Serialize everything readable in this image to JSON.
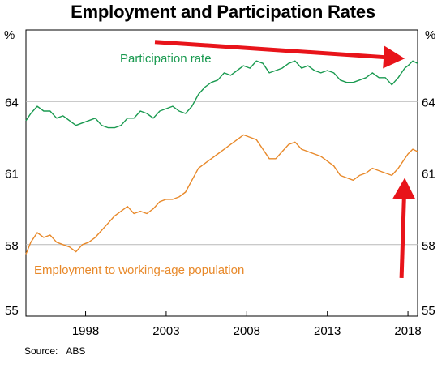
{
  "page": {
    "source_label": "Source:",
    "source_value": "ABS"
  },
  "chart_data": {
    "type": "line",
    "title": "Employment and Participation Rates",
    "y_unit_left": "%",
    "y_unit_right": "%",
    "ylim": [
      55,
      67
    ],
    "yticks": [
      55,
      58,
      61,
      64
    ],
    "xlim": [
      1994.3,
      2018.6
    ],
    "xticks": [
      1998,
      2003,
      2008,
      2013,
      2018
    ],
    "grid": "horizontal",
    "colors": {
      "participation": "#1a9a50",
      "employment": "#e8892a",
      "arrow": "#e8141a",
      "grid": "#b8b8b8"
    },
    "series": [
      {
        "name": "Participation rate",
        "color": "#1a9a50",
        "points": [
          [
            1994.3,
            63.2
          ],
          [
            1994.6,
            63.5
          ],
          [
            1995.0,
            63.8
          ],
          [
            1995.4,
            63.6
          ],
          [
            1995.8,
            63.6
          ],
          [
            1996.2,
            63.3
          ],
          [
            1996.6,
            63.4
          ],
          [
            1997.0,
            63.2
          ],
          [
            1997.4,
            63.0
          ],
          [
            1997.8,
            63.1
          ],
          [
            1998.2,
            63.2
          ],
          [
            1998.6,
            63.3
          ],
          [
            1999.0,
            63.0
          ],
          [
            1999.4,
            62.9
          ],
          [
            1999.8,
            62.9
          ],
          [
            2000.2,
            63.0
          ],
          [
            2000.6,
            63.3
          ],
          [
            2001.0,
            63.3
          ],
          [
            2001.4,
            63.6
          ],
          [
            2001.8,
            63.5
          ],
          [
            2002.2,
            63.3
          ],
          [
            2002.6,
            63.6
          ],
          [
            2003.0,
            63.7
          ],
          [
            2003.4,
            63.8
          ],
          [
            2003.8,
            63.6
          ],
          [
            2004.2,
            63.5
          ],
          [
            2004.6,
            63.8
          ],
          [
            2005.0,
            64.3
          ],
          [
            2005.4,
            64.6
          ],
          [
            2005.8,
            64.8
          ],
          [
            2006.2,
            64.9
          ],
          [
            2006.6,
            65.2
          ],
          [
            2007.0,
            65.1
          ],
          [
            2007.4,
            65.3
          ],
          [
            2007.8,
            65.5
          ],
          [
            2008.2,
            65.4
          ],
          [
            2008.6,
            65.7
          ],
          [
            2009.0,
            65.6
          ],
          [
            2009.4,
            65.2
          ],
          [
            2009.8,
            65.3
          ],
          [
            2010.2,
            65.4
          ],
          [
            2010.6,
            65.6
          ],
          [
            2011.0,
            65.7
          ],
          [
            2011.4,
            65.4
          ],
          [
            2011.8,
            65.5
          ],
          [
            2012.2,
            65.3
          ],
          [
            2012.6,
            65.2
          ],
          [
            2013.0,
            65.3
          ],
          [
            2013.4,
            65.2
          ],
          [
            2013.8,
            64.9
          ],
          [
            2014.2,
            64.8
          ],
          [
            2014.6,
            64.8
          ],
          [
            2015.0,
            64.9
          ],
          [
            2015.4,
            65.0
          ],
          [
            2015.8,
            65.2
          ],
          [
            2016.2,
            65.0
          ],
          [
            2016.6,
            65.0
          ],
          [
            2017.0,
            64.7
          ],
          [
            2017.4,
            65.0
          ],
          [
            2017.8,
            65.4
          ],
          [
            2018.0,
            65.5
          ],
          [
            2018.3,
            65.7
          ],
          [
            2018.6,
            65.6
          ]
        ]
      },
      {
        "name": "Employment to working-age population",
        "color": "#e8892a",
        "points": [
          [
            1994.3,
            57.6
          ],
          [
            1994.6,
            58.1
          ],
          [
            1995.0,
            58.5
          ],
          [
            1995.4,
            58.3
          ],
          [
            1995.8,
            58.4
          ],
          [
            1996.2,
            58.1
          ],
          [
            1996.6,
            58.0
          ],
          [
            1997.0,
            57.9
          ],
          [
            1997.4,
            57.7
          ],
          [
            1997.8,
            58.0
          ],
          [
            1998.2,
            58.1
          ],
          [
            1998.6,
            58.3
          ],
          [
            1999.0,
            58.6
          ],
          [
            1999.4,
            58.9
          ],
          [
            1999.8,
            59.2
          ],
          [
            2000.2,
            59.4
          ],
          [
            2000.6,
            59.6
          ],
          [
            2001.0,
            59.3
          ],
          [
            2001.4,
            59.4
          ],
          [
            2001.8,
            59.3
          ],
          [
            2002.2,
            59.5
          ],
          [
            2002.6,
            59.8
          ],
          [
            2003.0,
            59.9
          ],
          [
            2003.4,
            59.9
          ],
          [
            2003.8,
            60.0
          ],
          [
            2004.2,
            60.2
          ],
          [
            2004.6,
            60.7
          ],
          [
            2005.0,
            61.2
          ],
          [
            2005.4,
            61.4
          ],
          [
            2005.8,
            61.6
          ],
          [
            2006.2,
            61.8
          ],
          [
            2006.6,
            62.0
          ],
          [
            2007.0,
            62.2
          ],
          [
            2007.4,
            62.4
          ],
          [
            2007.8,
            62.6
          ],
          [
            2008.2,
            62.5
          ],
          [
            2008.6,
            62.4
          ],
          [
            2009.0,
            62.0
          ],
          [
            2009.4,
            61.6
          ],
          [
            2009.8,
            61.6
          ],
          [
            2010.2,
            61.9
          ],
          [
            2010.6,
            62.2
          ],
          [
            2011.0,
            62.3
          ],
          [
            2011.4,
            62.0
          ],
          [
            2011.8,
            61.9
          ],
          [
            2012.2,
            61.8
          ],
          [
            2012.6,
            61.7
          ],
          [
            2013.0,
            61.5
          ],
          [
            2013.4,
            61.3
          ],
          [
            2013.8,
            60.9
          ],
          [
            2014.2,
            60.8
          ],
          [
            2014.6,
            60.7
          ],
          [
            2015.0,
            60.9
          ],
          [
            2015.4,
            61.0
          ],
          [
            2015.8,
            61.2
          ],
          [
            2016.2,
            61.1
          ],
          [
            2016.6,
            61.0
          ],
          [
            2017.0,
            60.9
          ],
          [
            2017.4,
            61.2
          ],
          [
            2017.8,
            61.6
          ],
          [
            2018.0,
            61.8
          ],
          [
            2018.3,
            62.0
          ],
          [
            2018.6,
            61.9
          ]
        ]
      }
    ],
    "annotations": [
      {
        "type": "arrow",
        "color": "#e8141a",
        "from": [
          2002.3,
          66.5
        ],
        "to": [
          2017.8,
          65.8
        ]
      },
      {
        "type": "arrow",
        "color": "#e8141a",
        "from": [
          2017.6,
          56.6
        ],
        "to": [
          2017.8,
          60.8
        ]
      }
    ]
  }
}
